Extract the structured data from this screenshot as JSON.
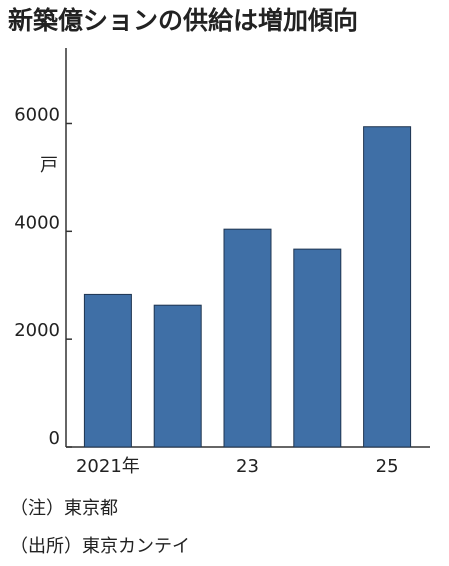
{
  "chart_data": {
    "type": "bar",
    "title": "新築億ションの供給は増加傾向",
    "y_unit": "戸",
    "categories": [
      "2021年",
      null,
      "23",
      null,
      "25"
    ],
    "values": [
      2830,
      2630,
      4040,
      3670,
      5940
    ],
    "color": "#3f6fa6",
    "ylim": [
      0,
      7400
    ],
    "yticks": [
      0,
      2000,
      4000,
      6000
    ],
    "grid": false,
    "notes": [
      "（注）東京都",
      "（出所）東京カンテイ"
    ]
  }
}
